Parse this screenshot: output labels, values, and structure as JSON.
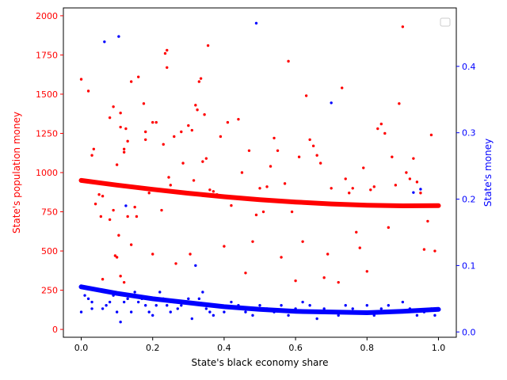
{
  "chart_data": {
    "type": "scatter",
    "xlabel": "State's black economy share",
    "ylabel_left": "State's population money",
    "ylabel_right": "State's money",
    "xlim": [
      -0.05,
      1.05
    ],
    "ylim_left": [
      -50,
      2050
    ],
    "ylim_right": [
      -0.008,
      0.488
    ],
    "xticks": [
      0.0,
      0.2,
      0.4,
      0.6,
      0.8,
      1.0
    ],
    "xtick_labels": [
      "0.0",
      "0.2",
      "0.4",
      "0.6",
      "0.8",
      "1.0"
    ],
    "yticks_left": [
      0,
      250,
      500,
      750,
      1000,
      1250,
      1500,
      1750,
      2000
    ],
    "ytick_labels_left": [
      "0",
      "250",
      "500",
      "750",
      "1000",
      "1250",
      "1500",
      "1750",
      "2000"
    ],
    "yticks_right": [
      0.0,
      0.1,
      0.2,
      0.3,
      0.4
    ],
    "ytick_labels_right": [
      "0.0",
      "0.1",
      "0.2",
      "0.3",
      "0.4"
    ],
    "grid": false,
    "legend": "upper right (empty)",
    "colors": {
      "left": "#ff0000",
      "right": "#0000ff"
    },
    "series": [
      {
        "axis": "left",
        "color": "#ff0000",
        "trend": [
          [
            0.0,
            950
          ],
          [
            0.1,
            920
          ],
          [
            0.2,
            893
          ],
          [
            0.3,
            868
          ],
          [
            0.4,
            846
          ],
          [
            0.5,
            827
          ],
          [
            0.6,
            812
          ],
          [
            0.7,
            800
          ],
          [
            0.8,
            792
          ],
          [
            0.9,
            788
          ],
          [
            1.0,
            789
          ]
        ],
        "points": [
          [
            0.0,
            1595
          ],
          [
            0.02,
            1520
          ],
          [
            0.03,
            1110
          ],
          [
            0.035,
            1150
          ],
          [
            0.04,
            800
          ],
          [
            0.05,
            860
          ],
          [
            0.055,
            720
          ],
          [
            0.06,
            850
          ],
          [
            0.06,
            320
          ],
          [
            0.08,
            1350
          ],
          [
            0.08,
            700
          ],
          [
            0.09,
            1420
          ],
          [
            0.09,
            760
          ],
          [
            0.095,
            470
          ],
          [
            0.1,
            460
          ],
          [
            0.1,
            1050
          ],
          [
            0.105,
            600
          ],
          [
            0.11,
            1380
          ],
          [
            0.11,
            340
          ],
          [
            0.11,
            1290
          ],
          [
            0.12,
            1150
          ],
          [
            0.12,
            1130
          ],
          [
            0.12,
            300
          ],
          [
            0.125,
            1280
          ],
          [
            0.13,
            720
          ],
          [
            0.13,
            1200
          ],
          [
            0.14,
            540
          ],
          [
            0.14,
            1580
          ],
          [
            0.15,
            780
          ],
          [
            0.155,
            720
          ],
          [
            0.16,
            1610
          ],
          [
            0.175,
            1440
          ],
          [
            0.18,
            1260
          ],
          [
            0.18,
            1210
          ],
          [
            0.19,
            870
          ],
          [
            0.2,
            480
          ],
          [
            0.2,
            1320
          ],
          [
            0.21,
            1320
          ],
          [
            0.22,
            890
          ],
          [
            0.225,
            760
          ],
          [
            0.23,
            1180
          ],
          [
            0.235,
            1760
          ],
          [
            0.24,
            1780
          ],
          [
            0.24,
            1670
          ],
          [
            0.245,
            970
          ],
          [
            0.25,
            920
          ],
          [
            0.26,
            1230
          ],
          [
            0.265,
            420
          ],
          [
            0.27,
            870
          ],
          [
            0.28,
            1260
          ],
          [
            0.285,
            1060
          ],
          [
            0.3,
            1300
          ],
          [
            0.305,
            480
          ],
          [
            0.31,
            1270
          ],
          [
            0.315,
            950
          ],
          [
            0.32,
            1430
          ],
          [
            0.325,
            1400
          ],
          [
            0.33,
            1580
          ],
          [
            0.335,
            1600
          ],
          [
            0.34,
            1070
          ],
          [
            0.345,
            1370
          ],
          [
            0.35,
            1090
          ],
          [
            0.355,
            1810
          ],
          [
            0.36,
            890
          ],
          [
            0.37,
            880
          ],
          [
            0.38,
            860
          ],
          [
            0.39,
            1230
          ],
          [
            0.4,
            530
          ],
          [
            0.41,
            1320
          ],
          [
            0.42,
            790
          ],
          [
            0.44,
            1340
          ],
          [
            0.45,
            1000
          ],
          [
            0.46,
            360
          ],
          [
            0.47,
            1140
          ],
          [
            0.48,
            560
          ],
          [
            0.49,
            730
          ],
          [
            0.5,
            900
          ],
          [
            0.51,
            750
          ],
          [
            0.52,
            910
          ],
          [
            0.53,
            1040
          ],
          [
            0.54,
            1220
          ],
          [
            0.55,
            1140
          ],
          [
            0.56,
            460
          ],
          [
            0.57,
            930
          ],
          [
            0.58,
            1710
          ],
          [
            0.59,
            750
          ],
          [
            0.6,
            310
          ],
          [
            0.61,
            1100
          ],
          [
            0.62,
            560
          ],
          [
            0.63,
            1490
          ],
          [
            0.64,
            1210
          ],
          [
            0.65,
            1170
          ],
          [
            0.66,
            1110
          ],
          [
            0.67,
            1060
          ],
          [
            0.68,
            330
          ],
          [
            0.69,
            480
          ],
          [
            0.7,
            900
          ],
          [
            0.72,
            300
          ],
          [
            0.73,
            1540
          ],
          [
            0.74,
            960
          ],
          [
            0.75,
            870
          ],
          [
            0.76,
            900
          ],
          [
            0.77,
            620
          ],
          [
            0.78,
            520
          ],
          [
            0.79,
            1030
          ],
          [
            0.8,
            370
          ],
          [
            0.81,
            890
          ],
          [
            0.82,
            910
          ],
          [
            0.83,
            1280
          ],
          [
            0.84,
            1310
          ],
          [
            0.85,
            1250
          ],
          [
            0.86,
            650
          ],
          [
            0.87,
            1100
          ],
          [
            0.88,
            920
          ],
          [
            0.89,
            1440
          ],
          [
            0.9,
            1930
          ],
          [
            0.91,
            1000
          ],
          [
            0.92,
            960
          ],
          [
            0.93,
            1090
          ],
          [
            0.94,
            940
          ],
          [
            0.95,
            870
          ],
          [
            0.96,
            510
          ],
          [
            0.97,
            690
          ],
          [
            0.98,
            1240
          ],
          [
            0.99,
            500
          ]
        ]
      },
      {
        "axis": "right",
        "color": "#0000ff",
        "trend": [
          [
            0.0,
            0.068
          ],
          [
            0.1,
            0.058
          ],
          [
            0.2,
            0.05
          ],
          [
            0.3,
            0.044
          ],
          [
            0.4,
            0.038
          ],
          [
            0.5,
            0.034
          ],
          [
            0.6,
            0.031
          ],
          [
            0.7,
            0.03
          ],
          [
            0.8,
            0.029
          ],
          [
            0.9,
            0.031
          ],
          [
            1.0,
            0.034
          ]
        ],
        "points": [
          [
            0.0,
            0.03
          ],
          [
            0.01,
            0.055
          ],
          [
            0.02,
            0.05
          ],
          [
            0.03,
            0.045
          ],
          [
            0.03,
            0.035
          ],
          [
            0.06,
            0.035
          ],
          [
            0.065,
            0.437
          ],
          [
            0.07,
            0.04
          ],
          [
            0.08,
            0.045
          ],
          [
            0.09,
            0.055
          ],
          [
            0.1,
            0.03
          ],
          [
            0.105,
            0.445
          ],
          [
            0.11,
            0.015
          ],
          [
            0.12,
            0.045
          ],
          [
            0.125,
            0.19
          ],
          [
            0.13,
            0.05
          ],
          [
            0.14,
            0.03
          ],
          [
            0.15,
            0.06
          ],
          [
            0.16,
            0.045
          ],
          [
            0.17,
            0.05
          ],
          [
            0.18,
            0.04
          ],
          [
            0.19,
            0.03
          ],
          [
            0.2,
            0.025
          ],
          [
            0.21,
            0.04
          ],
          [
            0.22,
            0.06
          ],
          [
            0.23,
            0.05
          ],
          [
            0.24,
            0.04
          ],
          [
            0.25,
            0.03
          ],
          [
            0.26,
            0.045
          ],
          [
            0.27,
            0.035
          ],
          [
            0.28,
            0.04
          ],
          [
            0.3,
            0.05
          ],
          [
            0.31,
            0.02
          ],
          [
            0.32,
            0.1
          ],
          [
            0.33,
            0.05
          ],
          [
            0.34,
            0.06
          ],
          [
            0.35,
            0.035
          ],
          [
            0.36,
            0.03
          ],
          [
            0.37,
            0.025
          ],
          [
            0.38,
            0.04
          ],
          [
            0.4,
            0.03
          ],
          [
            0.42,
            0.045
          ],
          [
            0.44,
            0.04
          ],
          [
            0.46,
            0.03
          ],
          [
            0.48,
            0.025
          ],
          [
            0.49,
            0.465
          ],
          [
            0.5,
            0.04
          ],
          [
            0.52,
            0.035
          ],
          [
            0.54,
            0.03
          ],
          [
            0.56,
            0.04
          ],
          [
            0.58,
            0.025
          ],
          [
            0.6,
            0.035
          ],
          [
            0.62,
            0.045
          ],
          [
            0.64,
            0.04
          ],
          [
            0.66,
            0.02
          ],
          [
            0.68,
            0.035
          ],
          [
            0.7,
            0.03
          ],
          [
            0.7,
            0.345
          ],
          [
            0.72,
            0.025
          ],
          [
            0.74,
            0.04
          ],
          [
            0.76,
            0.035
          ],
          [
            0.78,
            0.03
          ],
          [
            0.8,
            0.04
          ],
          [
            0.82,
            0.025
          ],
          [
            0.84,
            0.035
          ],
          [
            0.86,
            0.04
          ],
          [
            0.88,
            0.03
          ],
          [
            0.9,
            0.045
          ],
          [
            0.92,
            0.035
          ],
          [
            0.93,
            0.21
          ],
          [
            0.94,
            0.025
          ],
          [
            0.95,
            0.215
          ],
          [
            0.96,
            0.03
          ],
          [
            0.98,
            0.035
          ],
          [
            0.99,
            0.025
          ]
        ]
      }
    ]
  }
}
